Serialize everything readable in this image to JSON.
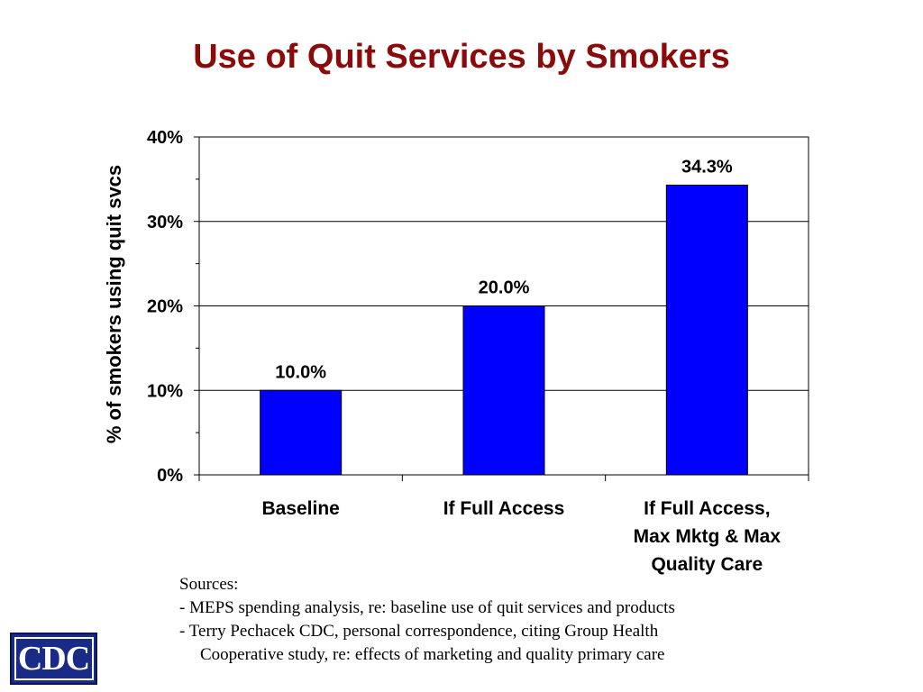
{
  "slide": {
    "title": "Use of Quit Services by Smokers"
  },
  "chart_data": {
    "type": "bar",
    "title": "",
    "categories": [
      [
        "Baseline"
      ],
      [
        "If Full Access"
      ],
      [
        "If Full Access,",
        "Max Mktg & Max",
        "Quality Care"
      ]
    ],
    "values": [
      10.0,
      20.0,
      34.3
    ],
    "value_labels": [
      "10.0%",
      "20.0%",
      "34.3%"
    ],
    "ylabel": "% of smokers using quit svcs",
    "xlabel": "",
    "ylim": [
      0,
      40
    ],
    "yticks": [
      0,
      10,
      20,
      30,
      40
    ],
    "ytick_labels": [
      "0%",
      "10%",
      "20%",
      "30%",
      "40%"
    ],
    "grid": true,
    "legend": "none",
    "bar_color": "#0000ff"
  },
  "sources": {
    "heading": "Sources:",
    "line1": "- MEPS spending analysis, re: baseline use of quit services and products",
    "line2": "- Terry Pechacek CDC, personal correspondence, citing Group Health",
    "line3": "Cooperative study, re: effects of marketing and quality primary care"
  },
  "logo": {
    "text": "CDC",
    "icon": "cdc-logo"
  }
}
